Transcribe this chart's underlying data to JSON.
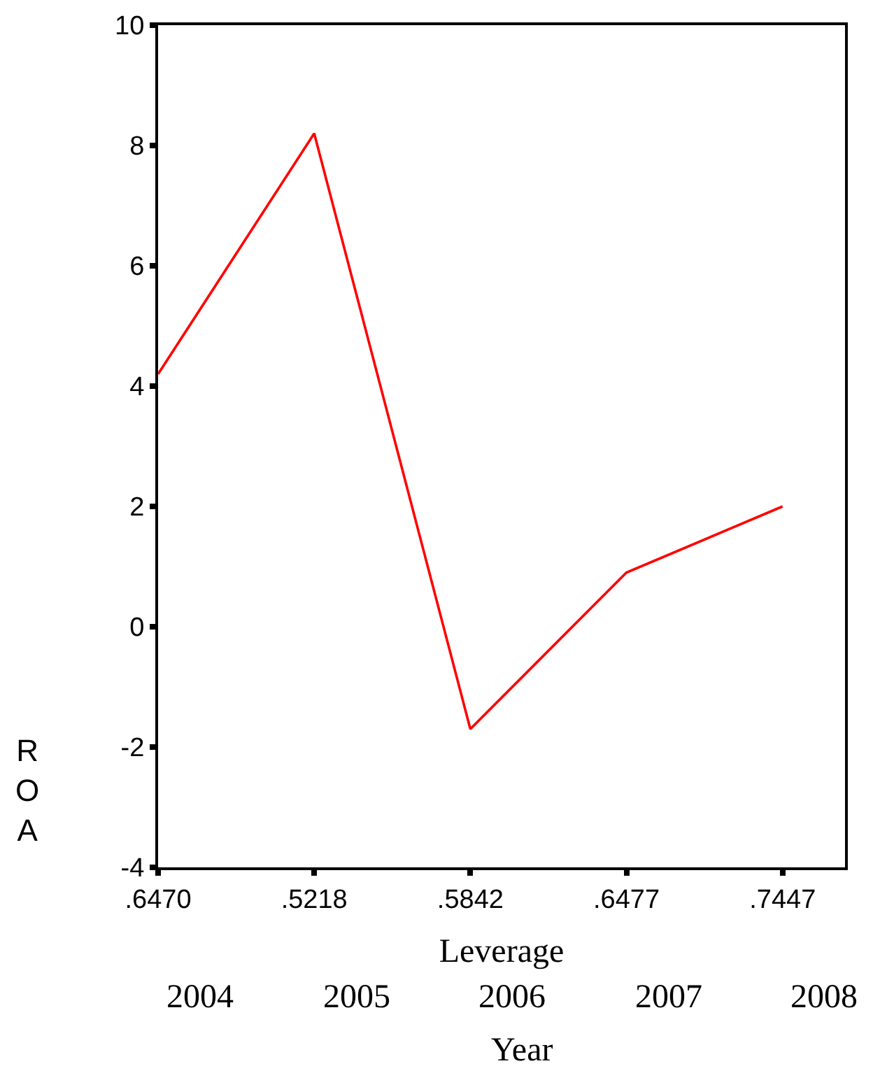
{
  "chart_data": {
    "type": "line",
    "categories": [
      ".6470",
      ".5218",
      ".5842",
      ".6477",
      ".7447"
    ],
    "series": [
      {
        "color": "#ff0000",
        "values": [
          4.2,
          8.2,
          -1.7,
          0.9,
          2.0
        ]
      }
    ],
    "xlabel": "Leverage",
    "ylabel": "ROA",
    "annotations": [
      "2004",
      "2005",
      "2006",
      "2007",
      "2008",
      "Year"
    ],
    "ylim": [
      -4,
      10
    ],
    "yticks": [
      -4,
      -2,
      0,
      2,
      4,
      6,
      8,
      10
    ],
    "grid": false,
    "marker": "none",
    "line_style": "solid"
  }
}
